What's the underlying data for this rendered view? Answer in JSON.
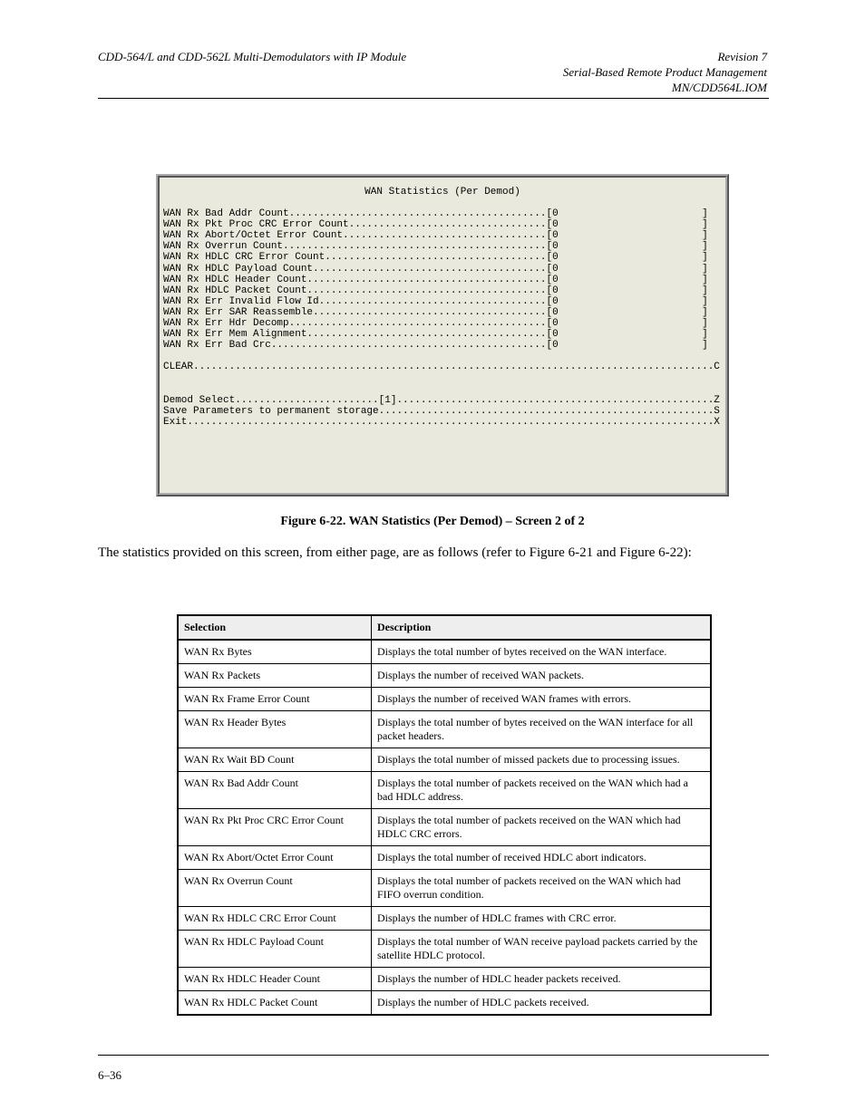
{
  "header": {
    "left": "CDD-564/L and CDD-562L Multi-Demodulators with IP Module",
    "right_line1": "Revision 7",
    "right_line2": "Serial-Based Remote Product Management",
    "right_line3": "MN/CDD564L.IOM"
  },
  "terminal": {
    "title": "WAN Statistics (Per Demod)",
    "rows": [
      {
        "label": "WAN Rx Bad Addr Count",
        "val": "0"
      },
      {
        "label": "WAN Rx Pkt Proc CRC Error Count",
        "val": "0"
      },
      {
        "label": "WAN Rx Abort/Octet Error Count",
        "val": "0"
      },
      {
        "label": "WAN Rx Overrun Count",
        "val": "0"
      },
      {
        "label": "WAN Rx HDLC CRC Error Count",
        "val": "0"
      },
      {
        "label": "WAN Rx HDLC Payload Count",
        "val": "0"
      },
      {
        "label": "WAN Rx HDLC Header Count",
        "val": "0"
      },
      {
        "label": "WAN Rx HDLC Packet Count",
        "val": "0"
      },
      {
        "label": "WAN Rx Err Invalid Flow Id",
        "val": "0"
      },
      {
        "label": "WAN Rx Err SAR Reassemble",
        "val": "0"
      },
      {
        "label": "WAN Rx Err Hdr Decomp",
        "val": "0"
      },
      {
        "label": "WAN Rx Err Mem Alignment",
        "val": "0"
      },
      {
        "label": "WAN Rx Err Bad Crc",
        "val": "0"
      }
    ],
    "clear": {
      "label": "CLEAR",
      "key": "C"
    },
    "demod": {
      "label": "Demod Select",
      "val": "1",
      "key": "Z"
    },
    "save": {
      "label": "Save Parameters to permanent storage",
      "key": "S"
    },
    "exit": {
      "label": "Exit",
      "key": "X"
    }
  },
  "figure": {
    "label": "Figure 6-22. WAN Statistics (Per Demod) – Screen 2 of 2"
  },
  "caption": "The statistics provided on this screen, from either page, are as follows (refer to Figure 6-21 and Figure 6-22):",
  "table": {
    "cols": [
      "Selection",
      "Description"
    ],
    "rows": [
      [
        "WAN Rx Bytes",
        "Displays the total number of bytes received on the WAN interface."
      ],
      [
        "WAN Rx Packets",
        "Displays the number of received WAN packets."
      ],
      [
        "WAN Rx Frame Error Count",
        "Displays the number of received WAN frames with errors."
      ],
      [
        "WAN Rx Header Bytes",
        "Displays the total number of bytes received on the WAN interface for all packet headers."
      ],
      [
        "WAN Rx Wait BD Count",
        "Displays the total number of missed packets due to processing issues."
      ],
      [
        "WAN Rx Bad Addr Count",
        "Displays the total number of packets received on the WAN which had a bad HDLC address."
      ],
      [
        "WAN Rx Pkt Proc CRC Error Count",
        "Displays the total number of packets received on the WAN which had HDLC CRC errors."
      ],
      [
        "WAN Rx Abort/Octet Error Count",
        "Displays the total number of received HDLC abort indicators."
      ],
      [
        "WAN Rx Overrun Count",
        "Displays the total number of packets received on the WAN which had FIFO overrun condition."
      ],
      [
        "WAN Rx HDLC CRC Error Count",
        "Displays the number of HDLC frames with CRC error."
      ],
      [
        "WAN Rx HDLC Payload Count",
        "Displays the total number of WAN receive payload packets carried by the satellite HDLC protocol."
      ],
      [
        "WAN Rx HDLC Header Count",
        "Displays the number of HDLC header packets received."
      ],
      [
        "WAN Rx HDLC Packet Count",
        "Displays the number of HDLC packets received."
      ]
    ]
  },
  "footer": {
    "left": "6–36",
    "right": ""
  }
}
